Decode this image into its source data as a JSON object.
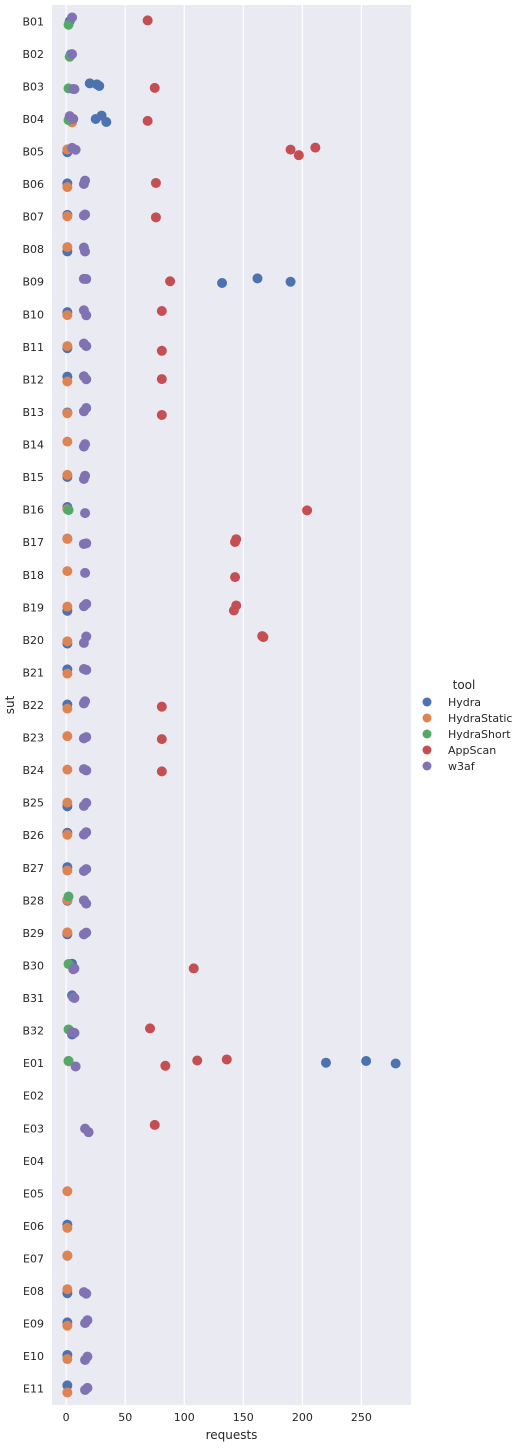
{
  "chart_data": {
    "type": "scatter",
    "subtype": "categorical-strip",
    "xlabel": "requests",
    "ylabel": "sut",
    "xlim": [
      -12,
      292
    ],
    "x_ticks": [
      0,
      50,
      100,
      150,
      200,
      250
    ],
    "grid": true,
    "legend": {
      "title": "tool",
      "placement": "right"
    },
    "categories": [
      "B01",
      "B02",
      "B03",
      "B04",
      "B05",
      "B06",
      "B07",
      "B08",
      "B09",
      "B10",
      "B11",
      "B12",
      "B13",
      "B14",
      "B15",
      "B16",
      "B17",
      "B18",
      "B19",
      "B20",
      "B21",
      "B22",
      "B23",
      "B24",
      "B25",
      "B26",
      "B27",
      "B28",
      "B29",
      "B30",
      "B31",
      "B32",
      "E01",
      "E02",
      "E03",
      "E04",
      "E05",
      "E06",
      "E07",
      "E08",
      "E09",
      "E10",
      "E11"
    ],
    "series": [
      {
        "name": "Hydra",
        "color": "#4c72b0",
        "points": [
          [
            "B01",
            3
          ],
          [
            "B02",
            4
          ],
          [
            "B03",
            20
          ],
          [
            "B03",
            26
          ],
          [
            "B03",
            28
          ],
          [
            "B04",
            25
          ],
          [
            "B04",
            30
          ],
          [
            "B04",
            34
          ],
          [
            "B05",
            1
          ],
          [
            "B06",
            1
          ],
          [
            "B07",
            1
          ],
          [
            "B08",
            1
          ],
          [
            "B09",
            132
          ],
          [
            "B09",
            162
          ],
          [
            "B09",
            190
          ],
          [
            "B10",
            1
          ],
          [
            "B11",
            1
          ],
          [
            "B12",
            1
          ],
          [
            "B13",
            1
          ],
          [
            "B15",
            1
          ],
          [
            "B16",
            1
          ],
          [
            "B17",
            1
          ],
          [
            "B19",
            1
          ],
          [
            "B20",
            1
          ],
          [
            "B21",
            1
          ],
          [
            "B22",
            1
          ],
          [
            "B25",
            1
          ],
          [
            "B26",
            1
          ],
          [
            "B27",
            1
          ],
          [
            "B28",
            1
          ],
          [
            "B29",
            1
          ],
          [
            "B30",
            5
          ],
          [
            "B31",
            5
          ],
          [
            "B32",
            5
          ],
          [
            "E01",
            220
          ],
          [
            "E01",
            254
          ],
          [
            "E01",
            279
          ],
          [
            "E06",
            1
          ],
          [
            "E07",
            1
          ],
          [
            "E08",
            1
          ],
          [
            "E09",
            1
          ],
          [
            "E10",
            1
          ],
          [
            "E11",
            1
          ]
        ]
      },
      {
        "name": "HydraStatic",
        "color": "#dd8452",
        "points": [
          [
            "B04",
            5
          ],
          [
            "B05",
            1
          ],
          [
            "B06",
            1
          ],
          [
            "B07",
            1
          ],
          [
            "B08",
            1
          ],
          [
            "B10",
            1
          ],
          [
            "B11",
            1
          ],
          [
            "B12",
            1
          ],
          [
            "B13",
            1
          ],
          [
            "B14",
            1
          ],
          [
            "B15",
            1
          ],
          [
            "B16",
            1
          ],
          [
            "B17",
            1
          ],
          [
            "B18",
            1
          ],
          [
            "B19",
            1
          ],
          [
            "B20",
            1
          ],
          [
            "B21",
            1
          ],
          [
            "B22",
            1
          ],
          [
            "B23",
            1
          ],
          [
            "B24",
            1
          ],
          [
            "B25",
            1
          ],
          [
            "B26",
            1
          ],
          [
            "B27",
            1
          ],
          [
            "B28",
            1
          ],
          [
            "B29",
            1
          ],
          [
            "E01",
            2
          ],
          [
            "E05",
            1
          ],
          [
            "E06",
            1
          ],
          [
            "E07",
            1
          ],
          [
            "E08",
            1
          ],
          [
            "E09",
            1
          ],
          [
            "E10",
            1
          ],
          [
            "E11",
            1
          ]
        ]
      },
      {
        "name": "HydraShort",
        "color": "#55a868",
        "points": [
          [
            "B01",
            2
          ],
          [
            "B02",
            3
          ],
          [
            "B03",
            2
          ],
          [
            "B04",
            2
          ],
          [
            "B16",
            2
          ],
          [
            "B28",
            2
          ],
          [
            "B30",
            2
          ],
          [
            "B32",
            2
          ],
          [
            "E01",
            2
          ]
        ]
      },
      {
        "name": "AppScan",
        "color": "#c44e52",
        "points": [
          [
            "B01",
            69
          ],
          [
            "B03",
            75
          ],
          [
            "B04",
            69
          ],
          [
            "B05",
            190
          ],
          [
            "B05",
            197
          ],
          [
            "B05",
            211
          ],
          [
            "B06",
            76
          ],
          [
            "B07",
            76
          ],
          [
            "B09",
            88
          ],
          [
            "B10",
            81
          ],
          [
            "B11",
            81
          ],
          [
            "B12",
            81
          ],
          [
            "B13",
            81
          ],
          [
            "B16",
            204
          ],
          [
            "B17",
            143
          ],
          [
            "B17",
            144
          ],
          [
            "B18",
            143
          ],
          [
            "B19",
            142
          ],
          [
            "B19",
            144
          ],
          [
            "B20",
            166
          ],
          [
            "B20",
            167
          ],
          [
            "B22",
            81
          ],
          [
            "B23",
            81
          ],
          [
            "B24",
            81
          ],
          [
            "B30",
            108
          ],
          [
            "B32",
            71
          ],
          [
            "E01",
            84
          ],
          [
            "E01",
            111
          ],
          [
            "E01",
            136
          ],
          [
            "E03",
            75
          ]
        ]
      },
      {
        "name": "w3af",
        "color": "#8172b3",
        "points": [
          [
            "B01",
            5
          ],
          [
            "B02",
            5
          ],
          [
            "B03",
            6
          ],
          [
            "B03",
            7
          ],
          [
            "B04",
            3
          ],
          [
            "B04",
            6
          ],
          [
            "B05",
            5
          ],
          [
            "B05",
            8
          ],
          [
            "B06",
            15
          ],
          [
            "B06",
            16
          ],
          [
            "B07",
            15
          ],
          [
            "B07",
            16
          ],
          [
            "B08",
            15
          ],
          [
            "B08",
            16
          ],
          [
            "B09",
            15
          ],
          [
            "B09",
            17
          ],
          [
            "B10",
            15
          ],
          [
            "B10",
            17
          ],
          [
            "B11",
            15
          ],
          [
            "B11",
            17
          ],
          [
            "B12",
            15
          ],
          [
            "B12",
            17
          ],
          [
            "B13",
            15
          ],
          [
            "B13",
            17
          ],
          [
            "B14",
            15
          ],
          [
            "B14",
            16
          ],
          [
            "B15",
            15
          ],
          [
            "B15",
            16
          ],
          [
            "B16",
            16
          ],
          [
            "B17",
            15
          ],
          [
            "B17",
            17
          ],
          [
            "B18",
            16
          ],
          [
            "B19",
            15
          ],
          [
            "B19",
            17
          ],
          [
            "B20",
            15
          ],
          [
            "B20",
            17
          ],
          [
            "B21",
            15
          ],
          [
            "B21",
            17
          ],
          [
            "B22",
            15
          ],
          [
            "B22",
            16
          ],
          [
            "B23",
            15
          ],
          [
            "B23",
            17
          ],
          [
            "B24",
            15
          ],
          [
            "B24",
            17
          ],
          [
            "B25",
            15
          ],
          [
            "B25",
            17
          ],
          [
            "B26",
            15
          ],
          [
            "B26",
            17
          ],
          [
            "B27",
            15
          ],
          [
            "B27",
            17
          ],
          [
            "B28",
            15
          ],
          [
            "B28",
            17
          ],
          [
            "B29",
            15
          ],
          [
            "B29",
            17
          ],
          [
            "B30",
            6
          ],
          [
            "B30",
            7
          ],
          [
            "B31",
            6
          ],
          [
            "B31",
            7
          ],
          [
            "B32",
            5
          ],
          [
            "B32",
            7
          ],
          [
            "E01",
            8
          ],
          [
            "E03",
            16
          ],
          [
            "E03",
            19
          ],
          [
            "E08",
            15
          ],
          [
            "E08",
            17
          ],
          [
            "E09",
            16
          ],
          [
            "E09",
            18
          ],
          [
            "E10",
            16
          ],
          [
            "E10",
            18
          ],
          [
            "E11",
            16
          ],
          [
            "E11",
            18
          ]
        ]
      }
    ]
  }
}
